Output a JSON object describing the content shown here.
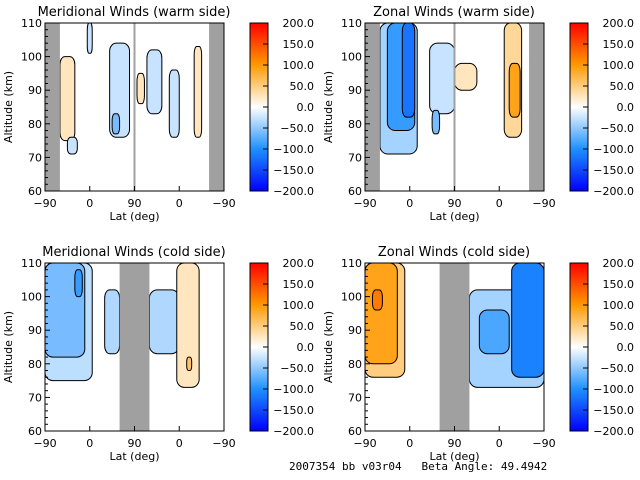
{
  "footer": "2007354 bb v03r04   Beta Angle: 49.4942",
  "colorbar": {
    "ticks": [
      "200.0",
      "150.0",
      "100.0",
      "50.0",
      "0.0",
      "-50.0",
      "-100.0",
      "-150.0",
      "-200.0"
    ],
    "range": [
      -200,
      200
    ],
    "colors": {
      "min": "#0000ff",
      "mid": "#ffffff",
      "max": "#ff0000",
      "orange": "#ff9a00",
      "blue": "#1e90ff"
    }
  },
  "chart_data": [
    {
      "type": "heatmap",
      "title": "Meridional Winds (warm side)",
      "xlabel": "Lat (deg)",
      "ylabel": "Altitude (km)",
      "xticks": [
        "-90",
        "0",
        "90",
        "0",
        "-90"
      ],
      "yticks": [
        "60",
        "70",
        "80",
        "90",
        "100",
        "110"
      ],
      "ylim": [
        60,
        110
      ],
      "no_data_regions": [
        [
          -90,
          -60
        ],
        [
          -60,
          -90
        ]
      ],
      "features": [
        {
          "lat_range": [
            -60,
            -30
          ],
          "alt_range": [
            75,
            100
          ],
          "value": 25
        },
        {
          "lat_range": [
            -45,
            -25
          ],
          "alt_range": [
            71,
            76
          ],
          "value": -25
        },
        {
          "lat_range": [
            -5,
            5
          ],
          "alt_range": [
            101,
            110
          ],
          "value": -25
        },
        {
          "lat_range": [
            40,
            80
          ],
          "alt_range": [
            76,
            104
          ],
          "value": -25
        },
        {
          "lat_range": [
            45,
            60
          ],
          "alt_range": [
            77,
            83
          ],
          "value": -60
        },
        {
          "lat_range": [
            95,
            110
          ],
          "alt_range": [
            86,
            95
          ],
          "value": 25
        },
        {
          "lat_range": [
            115,
            145
          ],
          "alt_range": [
            83,
            102
          ],
          "value": -25
        },
        {
          "lat_range": [
            160,
            180
          ],
          "alt_range": [
            76,
            96
          ],
          "value": -25
        },
        {
          "lat_range": [
            210,
            225
          ],
          "alt_range": [
            76,
            103
          ],
          "value": 25
        }
      ]
    },
    {
      "type": "heatmap",
      "title": "Zonal Winds (warm side)",
      "xlabel": "Lat (deg)",
      "ylabel": "Altitude (km)",
      "xticks": [
        "-90",
        "0",
        "90",
        "0",
        "-90"
      ],
      "yticks": [
        "60",
        "70",
        "80",
        "90",
        "100",
        "110"
      ],
      "ylim": [
        60,
        110
      ],
      "no_data_regions": [
        [
          -90,
          -60
        ],
        [
          -60,
          -90
        ]
      ],
      "features": [
        {
          "lat_range": [
            -60,
            15
          ],
          "alt_range": [
            71,
            110
          ],
          "value": -40
        },
        {
          "lat_range": [
            -45,
            10
          ],
          "alt_range": [
            78,
            110
          ],
          "value": -90
        },
        {
          "lat_range": [
            -15,
            10
          ],
          "alt_range": [
            82,
            110
          ],
          "value": -120
        },
        {
          "lat_range": [
            40,
            90
          ],
          "alt_range": [
            83,
            104
          ],
          "value": -25
        },
        {
          "lat_range": [
            45,
            60
          ],
          "alt_range": [
            77,
            84
          ],
          "value": -60
        },
        {
          "lat_range": [
            90,
            135
          ],
          "alt_range": [
            90,
            98
          ],
          "value": 25
        },
        {
          "lat_range": [
            190,
            225
          ],
          "alt_range": [
            76,
            110
          ],
          "value": 40
        },
        {
          "lat_range": [
            200,
            222
          ],
          "alt_range": [
            82,
            98
          ],
          "value": 90
        }
      ]
    },
    {
      "type": "heatmap",
      "title": "Meridional Winds (cold side)",
      "xlabel": "Lat (deg)",
      "ylabel": "Altitude (km)",
      "xticks": [
        "-90",
        "0",
        "90",
        "0",
        "-90"
      ],
      "yticks": [
        "60",
        "70",
        "80",
        "90",
        "100",
        "110"
      ],
      "ylim": [
        60,
        110
      ],
      "no_data_regions": [
        [
          60,
          120
        ]
      ],
      "features": [
        {
          "lat_range": [
            -90,
            5
          ],
          "alt_range": [
            75,
            110
          ],
          "value": -30
        },
        {
          "lat_range": [
            -90,
            -10
          ],
          "alt_range": [
            82,
            110
          ],
          "value": -60
        },
        {
          "lat_range": [
            -30,
            -15
          ],
          "alt_range": [
            100,
            108
          ],
          "value": -90
        },
        {
          "lat_range": [
            30,
            60
          ],
          "alt_range": [
            83,
            102
          ],
          "value": -35
        },
        {
          "lat_range": [
            120,
            180
          ],
          "alt_range": [
            83,
            102
          ],
          "value": -35
        },
        {
          "lat_range": [
            175,
            220
          ],
          "alt_range": [
            73,
            110
          ],
          "value": 25
        },
        {
          "lat_range": [
            195,
            205
          ],
          "alt_range": [
            78,
            82
          ],
          "value": 60
        }
      ]
    },
    {
      "type": "heatmap",
      "title": "Zonal Winds (cold side)",
      "xlabel": "Lat (deg)",
      "ylabel": "Altitude (km)",
      "xticks": [
        "-90",
        "0",
        "90",
        "0",
        "-90"
      ],
      "yticks": [
        "60",
        "70",
        "80",
        "90",
        "100",
        "110"
      ],
      "ylim": [
        60,
        110
      ],
      "no_data_regions": [
        [
          60,
          120
        ]
      ],
      "features": [
        {
          "lat_range": [
            -90,
            -10
          ],
          "alt_range": [
            76,
            110
          ],
          "value": 50
        },
        {
          "lat_range": [
            -90,
            -25
          ],
          "alt_range": [
            80,
            110
          ],
          "value": 90
        },
        {
          "lat_range": [
            -75,
            -55
          ],
          "alt_range": [
            96,
            102
          ],
          "value": 120
        },
        {
          "lat_range": [
            120,
            270
          ],
          "alt_range": [
            73,
            102
          ],
          "value": -40
        },
        {
          "lat_range": [
            140,
            200
          ],
          "alt_range": [
            83,
            96
          ],
          "value": -80
        },
        {
          "lat_range": [
            205,
            270
          ],
          "alt_range": [
            76,
            110
          ],
          "value": -110
        }
      ]
    }
  ]
}
